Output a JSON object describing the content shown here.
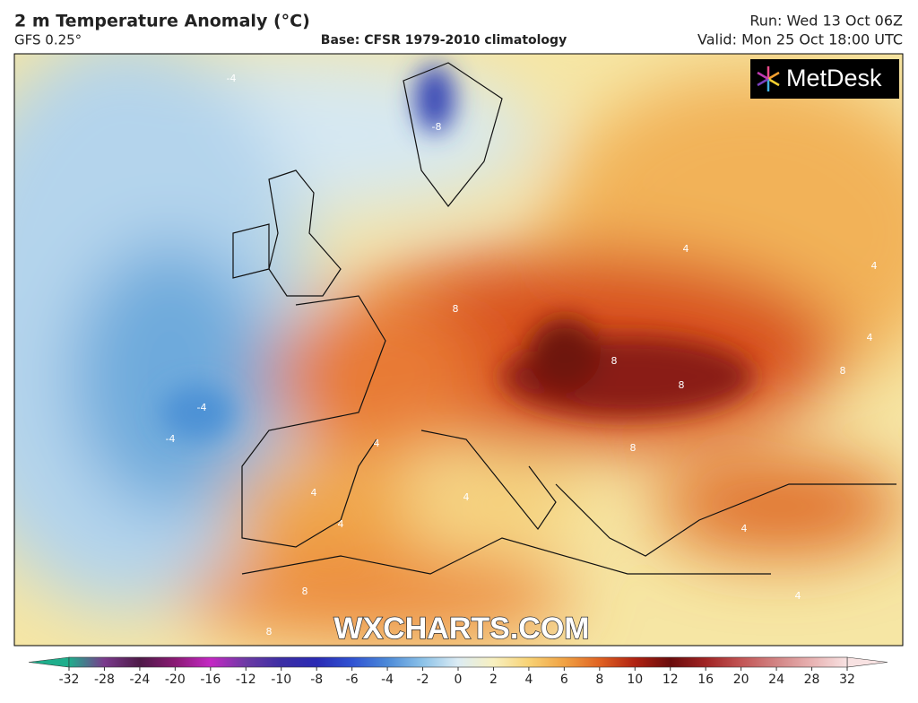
{
  "header": {
    "title": "2 m Temperature Anomaly (°C)",
    "model": "GFS 0.25°",
    "base": "Base: CFSR 1979-2010 climatology",
    "run": "Run: Wed 13 Oct 06Z",
    "valid": "Valid: Mon 25 Oct 18:00 UTC"
  },
  "logo": "MetDesk",
  "watermark": "WXCHARTS.COM",
  "map": {
    "contour_labels": [
      -4,
      -8,
      -4,
      -4,
      8,
      8,
      8,
      8,
      8,
      4,
      4,
      4,
      4,
      4,
      4,
      4,
      4,
      8,
      8,
      4
    ]
  },
  "colorbar": {
    "ticks": [
      -32,
      -28,
      -24,
      -20,
      -16,
      -12,
      -10,
      -8,
      -6,
      -4,
      -2,
      0,
      2,
      4,
      6,
      8,
      10,
      12,
      16,
      20,
      24,
      28,
      32
    ],
    "colors": [
      "#1fae8c",
      "#7a3a8c",
      "#4e1a48",
      "#8a1a74",
      "#c428c4",
      "#6c3aa4",
      "#3c2ea4",
      "#2a2ab4",
      "#3052d2",
      "#4c8ad8",
      "#8cc2e8",
      "#dcecf4",
      "#f8f0c0",
      "#f8d274",
      "#f0a244",
      "#e06222",
      "#b02212",
      "#6a0c0c",
      "#a02424",
      "#c25454",
      "#d28484",
      "#e8b2b2",
      "#f8e2e2"
    ]
  }
}
